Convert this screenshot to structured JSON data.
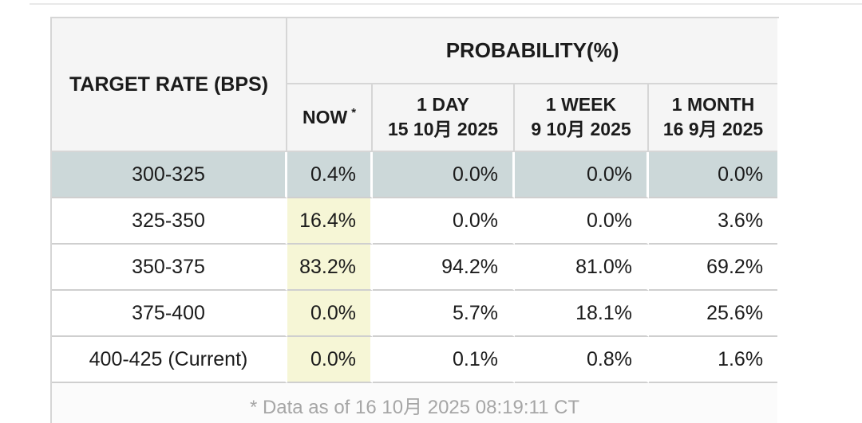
{
  "table": {
    "corner_header": "TARGET RATE (BPS)",
    "probability_header": "PROBABILITY(%)",
    "now_column": {
      "label": "NOW",
      "asterisk": "*"
    },
    "history_columns": [
      {
        "label": "1 DAY",
        "date": "15 10月 2025"
      },
      {
        "label": "1 WEEK",
        "date": "9 10月 2025"
      },
      {
        "label": "1 MONTH",
        "date": "16 9月 2025"
      }
    ],
    "rows": [
      {
        "target": "300-325",
        "now": "0.4%",
        "day": "0.0%",
        "week": "0.0%",
        "month": "0.0%",
        "highlighted": true
      },
      {
        "target": "325-350",
        "now": "16.4%",
        "day": "0.0%",
        "week": "0.0%",
        "month": "3.6%",
        "highlighted": false
      },
      {
        "target": "350-375",
        "now": "83.2%",
        "day": "94.2%",
        "week": "81.0%",
        "month": "69.2%",
        "highlighted": false
      },
      {
        "target": "375-400",
        "now": "0.0%",
        "day": "5.7%",
        "week": "18.1%",
        "month": "25.6%",
        "highlighted": false
      },
      {
        "target": "400-425 (Current)",
        "now": "0.0%",
        "day": "0.1%",
        "week": "0.8%",
        "month": "1.6%",
        "highlighted": false
      }
    ],
    "footnote": "* Data as of 16 10月 2025 08:19:11 CT"
  },
  "chart_data": {
    "type": "table",
    "title": "PROBABILITY(%)",
    "categories": [
      "300-325",
      "325-350",
      "350-375",
      "375-400",
      "400-425 (Current)"
    ],
    "series": [
      {
        "name": "NOW *",
        "values": [
          0.4,
          16.4,
          83.2,
          0.0,
          0.0
        ]
      },
      {
        "name": "1 DAY 15 10月 2025",
        "values": [
          0.0,
          0.0,
          94.2,
          5.7,
          0.1
        ]
      },
      {
        "name": "1 WEEK 9 10月 2025",
        "values": [
          0.0,
          0.0,
          81.0,
          18.1,
          0.8
        ]
      },
      {
        "name": "1 MONTH 16 9月 2025",
        "values": [
          0.0,
          3.6,
          69.2,
          25.6,
          1.6
        ]
      }
    ],
    "xlabel": "TARGET RATE (BPS)",
    "ylabel": "PROBABILITY(%)"
  },
  "colors": {
    "row_highlight": "#ccd8d9",
    "now_highlight": "#f6f6d6",
    "header_bg": "#f5f5f5",
    "border": "#d6d6d6",
    "footnote_text": "#a6a6a6"
  }
}
